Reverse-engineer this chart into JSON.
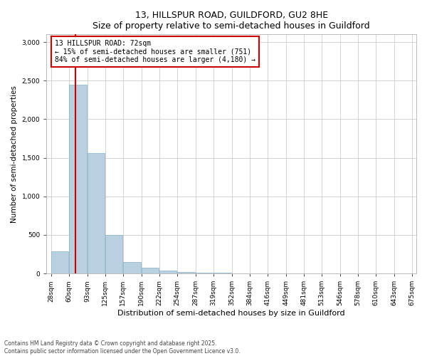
{
  "title": "13, HILLSPUR ROAD, GUILDFORD, GU2 8HE",
  "subtitle": "Size of property relative to semi-detached houses in Guildford",
  "xlabel": "Distribution of semi-detached houses by size in Guildford",
  "ylabel": "Number of semi-detached properties",
  "footnote1": "Contains HM Land Registry data © Crown copyright and database right 2025.",
  "footnote2": "Contains public sector information licensed under the Open Government Licence v3.0.",
  "property_size": 72,
  "annotation_title": "13 HILLSPUR ROAD: 72sqm",
  "annotation_line1": "← 15% of semi-detached houses are smaller (751)",
  "annotation_line2": "84% of semi-detached houses are larger (4,180) →",
  "bar_color": "#b8d0e0",
  "bar_edge_color": "#8ab0c8",
  "vline_color": "#cc0000",
  "annotation_box_color": "#cc0000",
  "ylim": [
    0,
    3100
  ],
  "yticks": [
    0,
    500,
    1000,
    1500,
    2000,
    2500,
    3000
  ],
  "bins": [
    "28sqm",
    "60sqm",
    "93sqm",
    "125sqm",
    "157sqm",
    "190sqm",
    "222sqm",
    "254sqm",
    "287sqm",
    "319sqm",
    "352sqm",
    "384sqm",
    "416sqm",
    "449sqm",
    "481sqm",
    "513sqm",
    "546sqm",
    "578sqm",
    "610sqm",
    "643sqm",
    "675sqm"
  ],
  "bin_edges": [
    28,
    60,
    93,
    125,
    157,
    190,
    222,
    254,
    287,
    319,
    352,
    384,
    416,
    449,
    481,
    513,
    546,
    578,
    610,
    643,
    675
  ],
  "values": [
    285,
    2450,
    1560,
    495,
    145,
    75,
    35,
    18,
    10,
    7,
    5,
    4,
    3,
    2,
    2,
    1,
    1,
    1,
    0,
    0
  ]
}
